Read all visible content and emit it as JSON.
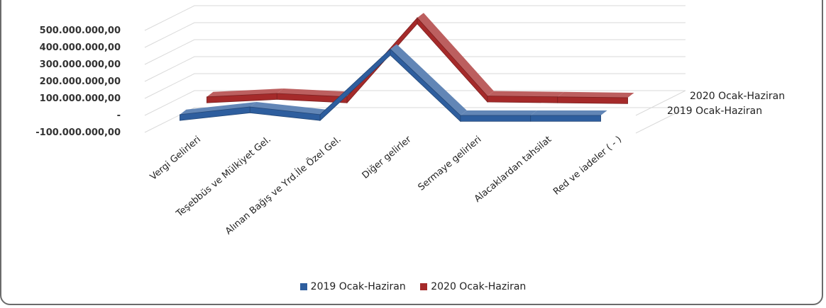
{
  "chart_data": {
    "type": "line",
    "style": "3d",
    "categories": [
      "Vergi Gelirleri",
      "Teşebbüs ve Mülkiyet Gel.",
      "Alınan Bağış ve Yrd.İle Özel Gel.",
      "Diğer gelirler",
      "Sermaye gelirleri",
      "Alacaklardan tahsilat",
      "Red ve iadeler ( - )"
    ],
    "series": [
      {
        "name": "2019 Ocak-Haziran",
        "values": [
          5000000,
          50000000,
          5000000,
          390000000,
          0,
          0,
          0
        ],
        "color": "#2E5E9E"
      },
      {
        "name": "2020 Ocak-Haziran",
        "values": [
          5000000,
          25000000,
          5000000,
          470000000,
          10000000,
          5000000,
          0
        ],
        "color": "#A52A2A"
      }
    ],
    "yticks": [
      "500.000.000,00",
      "400.000.000,00",
      "300.000.000,00",
      "200.000.000,00",
      "100.000.000,00",
      "-",
      "-100.000.000,00"
    ],
    "ylim": [
      -100000000,
      500000000
    ],
    "grid": true,
    "legend_position": "bottom"
  }
}
